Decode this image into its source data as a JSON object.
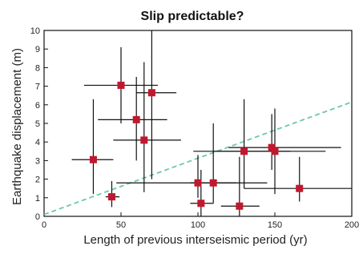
{
  "chart_data": {
    "type": "scatter",
    "title": "Slip predictable?",
    "xlabel": "Length of previous interseismic period (yr)",
    "ylabel": "Earthquake displacement (m)",
    "xlim": [
      0,
      200
    ],
    "ylim": [
      0,
      10
    ],
    "x_ticks": [
      "0",
      "50",
      "100",
      "150",
      "200"
    ],
    "y_ticks": [
      "0",
      "1",
      "2",
      "3",
      "4",
      "5",
      "6",
      "7",
      "8",
      "9",
      "10"
    ],
    "grid": false,
    "colors": {
      "marker": "#c0182e",
      "error_bar": "#111111",
      "trend_line": "#6cc9a0",
      "axes": "#111111"
    },
    "points": [
      {
        "x": 32,
        "y": 3.05,
        "x_err": [
          18,
          45
        ],
        "y_err": [
          1.2,
          6.3
        ]
      },
      {
        "x": 44,
        "y": 1.05,
        "x_err": [
          40,
          49
        ],
        "y_err": [
          0.5,
          1.9
        ]
      },
      {
        "x": 50,
        "y": 7.05,
        "x_err": [
          26,
          74
        ],
        "y_err": [
          5.0,
          9.1
        ]
      },
      {
        "x": 60,
        "y": 5.2,
        "x_err": [
          35,
          80
        ],
        "y_err": [
          3.0,
          7.5
        ]
      },
      {
        "x": 65,
        "y": 4.1,
        "x_err": [
          45,
          89
        ],
        "y_err": [
          1.3,
          8.3
        ]
      },
      {
        "x": 70,
        "y": 6.65,
        "x_err": [
          60,
          86
        ],
        "y_err": [
          2.0,
          10.0
        ]
      },
      {
        "x": 100,
        "y": 1.8,
        "x_err": [
          47,
          145
        ],
        "y_err": [
          1.0,
          3.3
        ]
      },
      {
        "x": 102,
        "y": 0.7,
        "x_err": [
          95,
          110
        ],
        "y_err": [
          0.0,
          2.5
        ]
      },
      {
        "x": 110,
        "y": 1.8,
        "x_err": [
          95,
          125
        ],
        "y_err": [
          0.7,
          5.0
        ]
      },
      {
        "x": 127,
        "y": 0.55,
        "x_err": [
          115,
          140
        ],
        "y_err": [
          0.0,
          3.2
        ]
      },
      {
        "x": 130,
        "y": 3.5,
        "x_err": [
          97,
          160
        ],
        "y_err": [
          1.5,
          6.3
        ]
      },
      {
        "x": 148,
        "y": 3.7,
        "x_err": [
          120,
          193
        ],
        "y_err": [
          2.5,
          5.5
        ]
      },
      {
        "x": 150,
        "y": 3.5,
        "x_err": [
          110,
          183
        ],
        "y_err": [
          1.2,
          5.8
        ]
      },
      {
        "x": 166,
        "y": 1.5,
        "x_err": [
          130,
          200
        ],
        "y_err": [
          0.8,
          3.2
        ]
      }
    ],
    "trend_line": {
      "x": [
        0,
        200
      ],
      "y": [
        0.1,
        6.15
      ],
      "style": "dashed"
    }
  }
}
